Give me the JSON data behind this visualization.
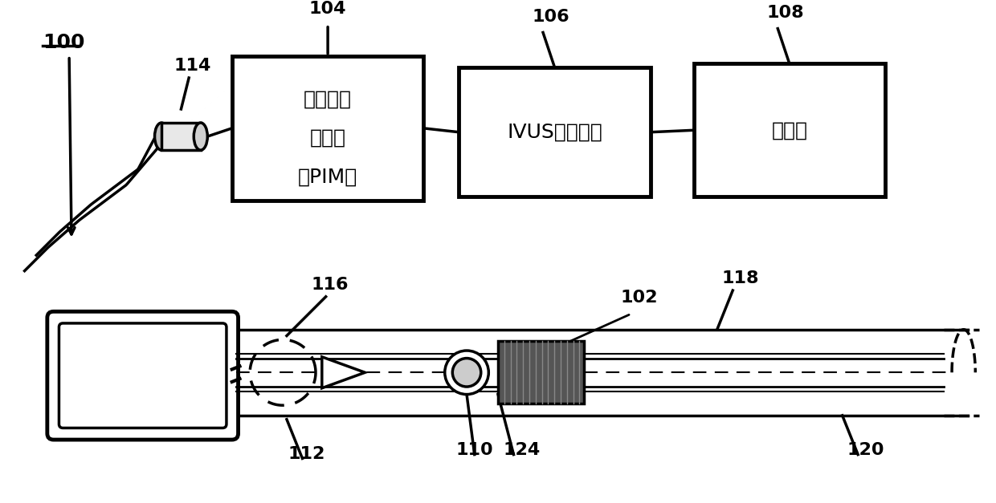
{
  "bg_color": "#ffffff",
  "line_color": "#000000",
  "box_color": "#ffffff",
  "box_edge": "#000000",
  "label_100": "100",
  "label_104": "104",
  "label_106": "106",
  "label_108": "108",
  "label_114": "114",
  "label_116": "116",
  "label_112": "112",
  "label_110": "110",
  "label_124": "124",
  "label_120": "120",
  "label_102": "102",
  "label_118": "118",
  "box1_text1": "患者界面",
  "box1_text2": "监视器",
  "box1_text3": "（PIM）",
  "box2_text": "IVUS处理系统",
  "box3_text": "监视器",
  "font_size_label": 14,
  "font_size_box": 18
}
